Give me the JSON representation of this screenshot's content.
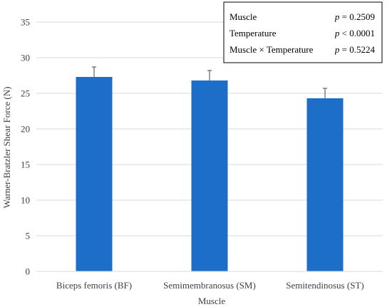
{
  "chart_data": {
    "type": "bar",
    "categories": [
      "Biceps femoris (BF)",
      "Semimembranosus (SM)",
      "Semitendinosus (ST)"
    ],
    "values": [
      27.3,
      26.8,
      24.3
    ],
    "error": [
      1.4,
      1.4,
      1.4
    ],
    "xlabel": "Muscle",
    "ylabel": "Warner-Bratzler Shear Force (N)",
    "ylim": [
      0,
      35
    ],
    "yticks": [
      0,
      5,
      10,
      15,
      20,
      25,
      30,
      35
    ],
    "grid": true,
    "bar_color": "#1c6ec9",
    "stats": [
      {
        "label": "Muscle",
        "p_symbol": "p",
        "p_value": " = 0.2509"
      },
      {
        "label": "Temperature",
        "p_symbol": "p",
        "p_value": " < 0.0001"
      },
      {
        "label": "Muscle × Temperature",
        "p_symbol": "p",
        "p_value": " = 0.5224"
      }
    ]
  }
}
